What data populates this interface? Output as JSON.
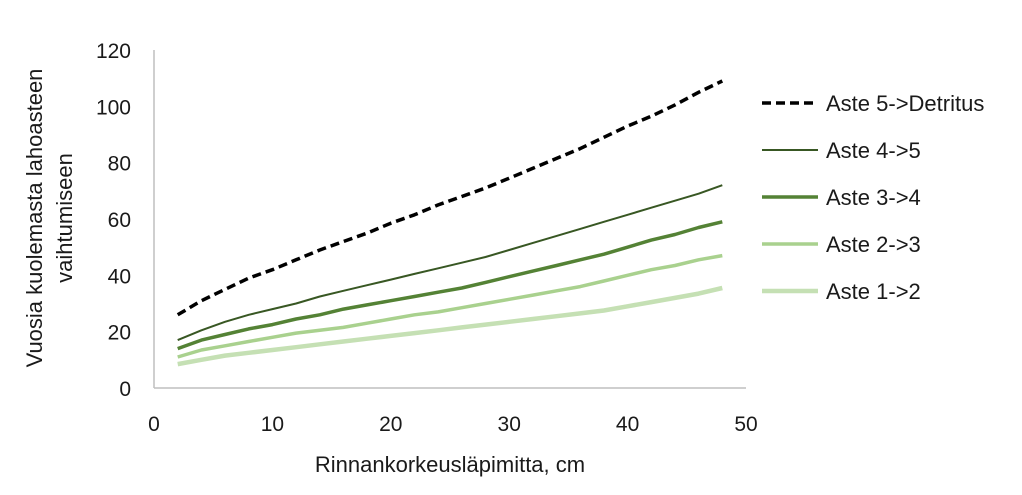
{
  "chart_data": {
    "type": "line",
    "title": "",
    "xlabel": "Rinnankorkeusläpimitta, cm",
    "ylabel_lines": [
      "Vuosia kuolemasta lahoasteen",
      "vaihtumiseen"
    ],
    "xlim": [
      0,
      50
    ],
    "ylim": [
      0,
      120
    ],
    "xticks": [
      0,
      10,
      20,
      30,
      40,
      50
    ],
    "yticks": [
      0,
      20,
      40,
      60,
      80,
      100,
      120
    ],
    "grid": false,
    "legend_position": "right",
    "x": [
      2,
      4,
      6,
      8,
      10,
      12,
      14,
      16,
      18,
      20,
      22,
      24,
      26,
      28,
      30,
      32,
      34,
      36,
      38,
      40,
      42,
      44,
      46,
      48
    ],
    "series": [
      {
        "name": "Aste 5->Detritus",
        "color": "#000000",
        "style": "dashed",
        "values": [
          26,
          31,
          35,
          39,
          42,
          45.5,
          49,
          52,
          55,
          58.5,
          61.5,
          65,
          68,
          71,
          74.5,
          78,
          81.5,
          85,
          89,
          93,
          96.5,
          100.5,
          105,
          109
        ]
      },
      {
        "name": "Aste 4->5",
        "color": "#385723",
        "style": "solid-thin",
        "values": [
          17,
          20.5,
          23.5,
          26,
          28,
          30,
          32.5,
          34.5,
          36.5,
          38.5,
          40.5,
          42.5,
          44.5,
          46.5,
          49,
          51.5,
          54,
          56.5,
          59,
          61.5,
          64,
          66.5,
          69,
          72
        ]
      },
      {
        "name": "Aste 3->4",
        "color": "#548235",
        "style": "solid-thick",
        "values": [
          14,
          17,
          19,
          21,
          22.5,
          24.5,
          26,
          28,
          29.5,
          31,
          32.5,
          34,
          35.5,
          37.5,
          39.5,
          41.5,
          43.5,
          45.5,
          47.5,
          50,
          52.5,
          54.5,
          57,
          59
        ]
      },
      {
        "name": "Aste 2->3",
        "color": "#a9d18e",
        "style": "solid-thick",
        "values": [
          11,
          13.5,
          15,
          16.5,
          18,
          19.5,
          20.5,
          21.5,
          23,
          24.5,
          26,
          27,
          28.5,
          30,
          31.5,
          33,
          34.5,
          36,
          38,
          40,
          42,
          43.5,
          45.5,
          47
        ]
      },
      {
        "name": "Aste 1->2",
        "color": "#c5e0b4",
        "style": "solid-thicker",
        "values": [
          8.5,
          10,
          11.5,
          12.5,
          13.5,
          14.5,
          15.5,
          16.5,
          17.5,
          18.5,
          19.5,
          20.5,
          21.5,
          22.5,
          23.5,
          24.5,
          25.5,
          26.5,
          27.5,
          29,
          30.5,
          32,
          33.5,
          35.5
        ]
      }
    ]
  }
}
